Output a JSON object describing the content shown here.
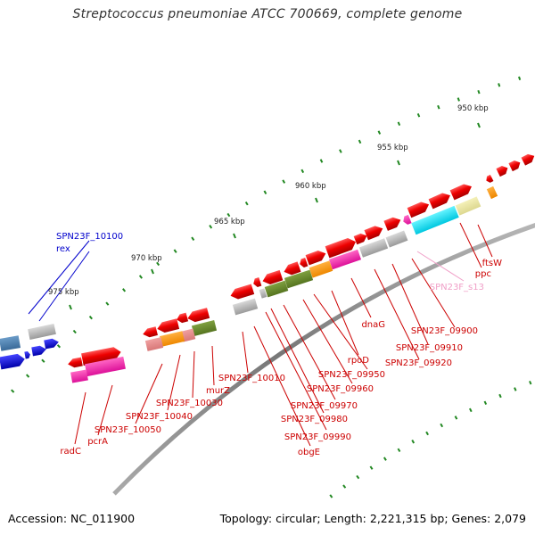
{
  "title": "Streptococcus pneumoniae ATCC 700669, complete genome",
  "footer": {
    "accession": "Accession: NC_011900",
    "summary": "Topology: circular; Length: 2,221,315 bp; Genes: 2,079"
  },
  "scale_labels": [
    "950 kbp",
    "955 kbp",
    "960 kbp",
    "965 kbp",
    "970 kbp",
    "975 kbp"
  ],
  "gene_labels": [
    {
      "text": "SPN23F_10100",
      "color": "#0000cc"
    },
    {
      "text": "rex",
      "color": "#0000cc"
    },
    {
      "text": "ftsW",
      "color": "#cc0000"
    },
    {
      "text": "ppc",
      "color": "#cc0000"
    },
    {
      "text": "SPN23F_s13",
      "color": "#f0a0c8"
    },
    {
      "text": "SPN23F_09900",
      "color": "#cc0000"
    },
    {
      "text": "SPN23F_09910",
      "color": "#cc0000"
    },
    {
      "text": "SPN23F_09920",
      "color": "#cc0000"
    },
    {
      "text": "dnaG",
      "color": "#cc0000"
    },
    {
      "text": "rpoD",
      "color": "#cc0000"
    },
    {
      "text": "SPN23F_09950",
      "color": "#cc0000"
    },
    {
      "text": "SPN23F_09960",
      "color": "#cc0000"
    },
    {
      "text": "SPN23F_09970",
      "color": "#cc0000"
    },
    {
      "text": "SPN23F_09980",
      "color": "#cc0000"
    },
    {
      "text": "SPN23F_09990",
      "color": "#cc0000"
    },
    {
      "text": "obgE",
      "color": "#cc0000"
    },
    {
      "text": "SPN23F_10010",
      "color": "#cc0000"
    },
    {
      "text": "murZ",
      "color": "#cc0000"
    },
    {
      "text": "SPN23F_10030",
      "color": "#cc0000"
    },
    {
      "text": "SPN23F_10040",
      "color": "#cc0000"
    },
    {
      "text": "SPN23F_10050",
      "color": "#cc0000"
    },
    {
      "text": "pcrA",
      "color": "#cc0000"
    },
    {
      "text": "radC",
      "color": "#cc0000"
    }
  ],
  "colors": {
    "backbone": "#888888",
    "forward_cds": "#ee0000",
    "reverse_cds": "#0000ee",
    "scale_ticks": "#228822"
  }
}
